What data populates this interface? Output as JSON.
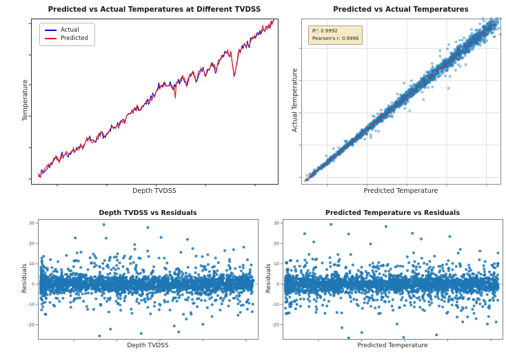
{
  "figure": {
    "background": "#ffffff",
    "grid_layout": "2x2 matplotlib-style figure"
  },
  "chart_data": [
    {
      "id": "line-predicted-vs-actual-by-depth",
      "type": "line",
      "title": "Predicted vs Actual Temperatures at Different TVDSS",
      "xlabel": "Depth TVDSS",
      "ylabel": "Temperature",
      "x_tick_labels": [],
      "y_tick_labels": [],
      "tick_note": "axis tick marks shown without numeric labels",
      "legend": {
        "position": "upper left",
        "entries": [
          {
            "label": "Actual",
            "color": "#0000dd"
          },
          {
            "label": "Predicted",
            "color": "#ee1111"
          }
        ]
      },
      "trend": "temperature rises monotonically with depth from lower-left to upper-right, jagged high-frequency noise, several V-shaped dips, large dip near 82% of depth range",
      "anchors_fraction_xy": [
        [
          0.03,
          0.035
        ],
        [
          0.042,
          0.065
        ],
        [
          0.055,
          0.075
        ],
        [
          0.065,
          0.1
        ],
        [
          0.078,
          0.115
        ],
        [
          0.09,
          0.135
        ],
        [
          0.1,
          0.152
        ],
        [
          0.112,
          0.14
        ],
        [
          0.125,
          0.168
        ],
        [
          0.14,
          0.185
        ],
        [
          0.155,
          0.178
        ],
        [
          0.17,
          0.2
        ],
        [
          0.185,
          0.215
        ],
        [
          0.2,
          0.22
        ],
        [
          0.215,
          0.248
        ],
        [
          0.23,
          0.268
        ],
        [
          0.245,
          0.275
        ],
        [
          0.258,
          0.258
        ],
        [
          0.272,
          0.295
        ],
        [
          0.29,
          0.312
        ],
        [
          0.305,
          0.3
        ],
        [
          0.32,
          0.328
        ],
        [
          0.34,
          0.352
        ],
        [
          0.36,
          0.372
        ],
        [
          0.38,
          0.395
        ],
        [
          0.4,
          0.422
        ],
        [
          0.418,
          0.448
        ],
        [
          0.432,
          0.468
        ],
        [
          0.447,
          0.452
        ],
        [
          0.462,
          0.488
        ],
        [
          0.478,
          0.505
        ],
        [
          0.492,
          0.52
        ],
        [
          0.508,
          0.548
        ],
        [
          0.522,
          0.585
        ],
        [
          0.538,
          0.6
        ],
        [
          0.552,
          0.595
        ],
        [
          0.565,
          0.605
        ],
        [
          0.578,
          0.57
        ],
        [
          0.59,
          0.612
        ],
        [
          0.605,
          0.625
        ],
        [
          0.618,
          0.638
        ],
        [
          0.632,
          0.605
        ],
        [
          0.645,
          0.658
        ],
        [
          0.658,
          0.672
        ],
        [
          0.67,
          0.628
        ],
        [
          0.683,
          0.685
        ],
        [
          0.697,
          0.705
        ],
        [
          0.71,
          0.655
        ],
        [
          0.723,
          0.715
        ],
        [
          0.737,
          0.728
        ],
        [
          0.75,
          0.672
        ],
        [
          0.763,
          0.748
        ],
        [
          0.776,
          0.772
        ],
        [
          0.79,
          0.8
        ],
        [
          0.802,
          0.788
        ],
        [
          0.812,
          0.778
        ],
        [
          0.822,
          0.665
        ],
        [
          0.832,
          0.705
        ],
        [
          0.843,
          0.8
        ],
        [
          0.855,
          0.825
        ],
        [
          0.868,
          0.845
        ],
        [
          0.88,
          0.835
        ],
        [
          0.893,
          0.872
        ],
        [
          0.906,
          0.888
        ],
        [
          0.92,
          0.905
        ],
        [
          0.934,
          0.922
        ],
        [
          0.948,
          0.94
        ],
        [
          0.962,
          0.952
        ],
        [
          0.975,
          0.962
        ],
        [
          0.985,
          0.978
        ]
      ],
      "noise": {
        "seed": 7,
        "points": 230,
        "shared_amplitude": 0.01,
        "actual_amplitude": 0.005,
        "predicted_amplitude": 0.009
      },
      "predicted_only_spikes": [
        {
          "x": 0.248,
          "depth": 0.05
        },
        {
          "x": 0.585,
          "depth": 0.065
        }
      ],
      "x_tick_positions": [
        0.106,
        0.307,
        0.508,
        0.707,
        0.908
      ],
      "y_tick_positions": [
        0.03,
        0.22,
        0.41,
        0.6,
        0.78,
        0.97
      ],
      "spine_color": "#2f2f2f"
    },
    {
      "id": "scatter-predicted-vs-actual",
      "type": "scatter",
      "title": "Predicted vs Actual Temperatures",
      "xlabel": "Predicted Temperature",
      "ylabel": "Actual Temperature",
      "x_tick_labels": [],
      "y_tick_labels": [],
      "annotation": {
        "r2_label": "R²",
        "r2_value": ": 0.9992",
        "pearson_text": "Pearson's r: 0.9996",
        "r_squared": 0.9992,
        "pearsons_r": 0.9996,
        "box_fill": "#f6e9c6",
        "box_border": "#b4a079"
      },
      "identity_line": {
        "style": "dashed",
        "color": "#d62728"
      },
      "points": {
        "seed": 11,
        "count": 2000,
        "sigma_base": 0.0035,
        "sigma_slope": 0.016,
        "wide_fraction": 0.06,
        "wide_multiplier": 3,
        "density_bias_exponent": 0.72
      },
      "marker": {
        "color": "#1f77b4",
        "opacity": 0.45,
        "radius": 2.0
      },
      "grid": true,
      "grid_color": "#d8d8d8",
      "x_tick_positions": [
        0.13,
        0.33,
        0.53,
        0.73,
        0.93
      ],
      "y_tick_positions": [
        0.04,
        0.235,
        0.43,
        0.625,
        0.82
      ],
      "spine_color": "#8c8c8c",
      "relationship": "actual temperature almost equals predicted temperature along identity line; spread widens slightly at mid range"
    },
    {
      "id": "scatter-depth-vs-residuals",
      "type": "scatter",
      "title": "Depth TVDSS vs Residuals",
      "xlabel": "Depth TVDSS",
      "ylabel": "Residuals",
      "y_ticks": [
        30,
        20,
        10,
        0,
        -10,
        -20
      ],
      "ylim": [
        -27,
        32
      ],
      "x_tick_labels": [],
      "zero_line": {
        "value": 0,
        "style": "dashed",
        "color": "#9a9a9a"
      },
      "points": {
        "seed": 21,
        "count": 2700,
        "core_sigma": 2.1,
        "mid_sigma": 4.1,
        "core_fraction": 0.72,
        "mid_fraction": 0.21,
        "left_clump_fraction": 0.08
      },
      "feature_points": [
        [
          0.3,
          29.3
        ],
        [
          0.5,
          27.9
        ],
        [
          0.17,
          22.7
        ],
        [
          0.31,
          22.6
        ],
        [
          0.56,
          23.0
        ],
        [
          0.68,
          22.0
        ],
        [
          0.44,
          19.5
        ],
        [
          0.85,
          16.5
        ],
        [
          0.28,
          -25.5
        ],
        [
          0.47,
          -24.3
        ],
        [
          0.64,
          -23.5
        ],
        [
          0.62,
          -20.6
        ],
        [
          0.33,
          -22.2
        ],
        [
          0.75,
          -19.8
        ],
        [
          0.91,
          -15.3
        ]
      ],
      "marker": {
        "color": "#1f77b4",
        "opacity": 0.85,
        "radius": 2.0
      },
      "x_tick_positions": [
        0.163,
        0.359,
        0.555,
        0.751,
        0.947
      ],
      "spine_color": "#7d7d7d",
      "distribution": "residuals centered on 0, dense band within about ±5, sparser points to ±15, outliers to +29 and -26"
    },
    {
      "id": "scatter-predicted-vs-residuals",
      "type": "scatter",
      "title": "Predicted Temperature vs Residuals",
      "xlabel": "Predicted Temperature",
      "ylabel": "Residuals",
      "y_ticks": [
        30,
        20,
        10,
        0,
        -10,
        -20
      ],
      "ylim": [
        -27,
        32
      ],
      "x_tick_labels": [],
      "zero_line": {
        "value": 0,
        "style": "dashed",
        "color": "#9a9a9a"
      },
      "points": {
        "seed": 33,
        "count": 2700,
        "core_sigma": 2.1,
        "mid_sigma": 4.1,
        "core_fraction": 0.72,
        "mid_fraction": 0.21,
        "left_clump_fraction": 0.09
      },
      "feature_points": [
        [
          0.22,
          29.4
        ],
        [
          0.47,
          28.3
        ],
        [
          0.1,
          24.8
        ],
        [
          0.3,
          24.6
        ],
        [
          0.59,
          25.0
        ],
        [
          0.76,
          23.4
        ],
        [
          0.63,
          22.2
        ],
        [
          0.4,
          19.8
        ],
        [
          0.3,
          -26.5
        ],
        [
          0.55,
          -26.2
        ],
        [
          0.7,
          -25.0
        ],
        [
          0.36,
          -23.8
        ],
        [
          0.27,
          -21.5
        ],
        [
          0.52,
          -19.6
        ],
        [
          0.88,
          -17.0
        ]
      ],
      "marker": {
        "color": "#1f77b4",
        "opacity": 0.85,
        "radius": 2.0
      },
      "x_tick_positions": [
        0.163,
        0.359,
        0.555,
        0.751,
        0.947
      ],
      "spine_color": "#7d7d7d",
      "distribution": "residuals centered on 0, dense band within about ±5, dense clump at smallest predicted temperatures, outliers to +29 and -27"
    }
  ]
}
